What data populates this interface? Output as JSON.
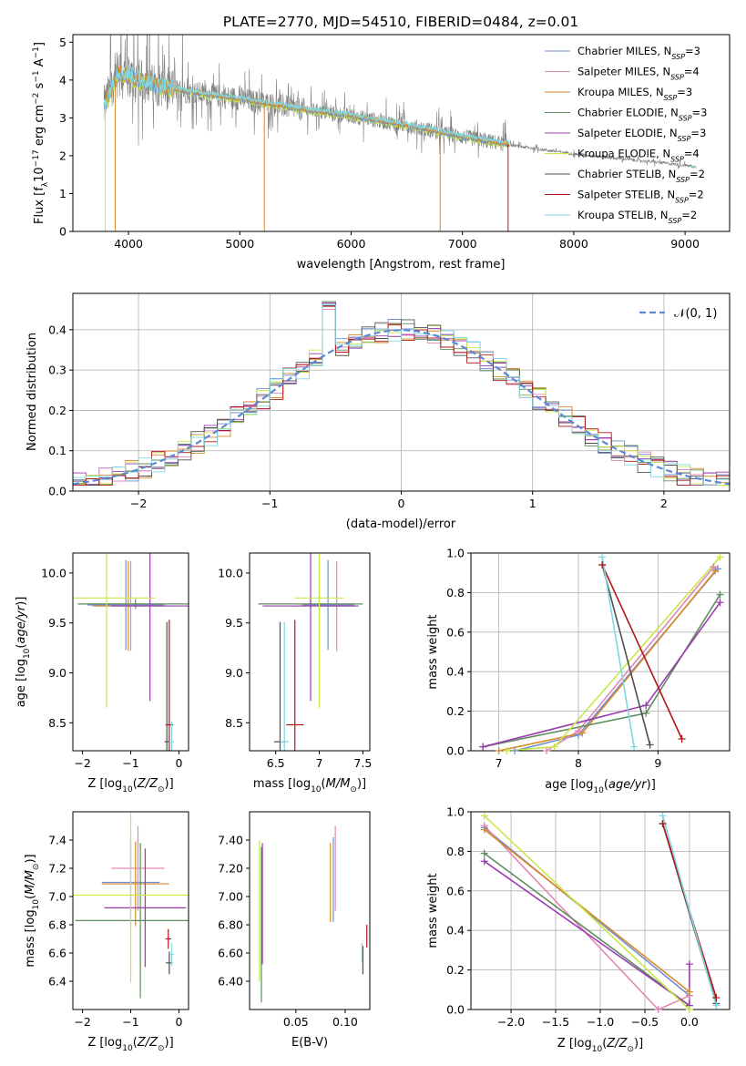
{
  "figure": {
    "title": "PLATE=2770, MJD=54510, FIBERID=0484, z=0.01"
  },
  "series_colors": {
    "Chabrier MILES": "#6f8fd0",
    "Salpeter MILES": "#e387b8",
    "Kroupa MILES": "#d98a2a",
    "Chabrier ELODIE": "#5e8e5e",
    "Salpeter ELODIE": "#9c3cb0",
    "Kroupa ELODIE": "#c8e84a",
    "Chabrier STELIB": "#505050",
    "Salpeter STELIB": "#b01616",
    "Kroupa STELIB": "#80d8e0",
    "data": "#808080",
    "gaussian": "#5a88d4"
  },
  "legend": [
    {
      "model": "Chabrier MILES",
      "n": "3",
      "text": "Chabrier MILES, N",
      "sub": "SSP",
      "suffix": "=3"
    },
    {
      "model": "Salpeter MILES",
      "n": "4",
      "text": "Salpeter MILES, N",
      "sub": "SSP",
      "suffix": "=4"
    },
    {
      "model": "Kroupa MILES",
      "n": "3",
      "text": "Kroupa MILES, N",
      "sub": "SSP",
      "suffix": "=3"
    },
    {
      "model": "Chabrier ELODIE",
      "n": "3",
      "text": "Chabrier ELODIE, N",
      "sub": "SSP",
      "suffix": "=3"
    },
    {
      "model": "Salpeter ELODIE",
      "n": "3",
      "text": "Salpeter ELODIE, N",
      "sub": "SSP",
      "suffix": "=3"
    },
    {
      "model": "Kroupa ELODIE",
      "n": "4",
      "text": "Kroupa ELODIE, N",
      "sub": "SSP",
      "suffix": "=4"
    },
    {
      "model": "Chabrier STELIB",
      "n": "2",
      "text": "Chabrier STELIB, N",
      "sub": "SSP",
      "suffix": "=2"
    },
    {
      "model": "Salpeter STELIB",
      "n": "2",
      "text": "Salpeter STELIB, N",
      "sub": "SSP",
      "suffix": "=2"
    },
    {
      "model": "Kroupa STELIB",
      "n": "2",
      "text": "Kroupa STELIB, N",
      "sub": "SSP",
      "suffix": "=2"
    }
  ],
  "chart_data": [
    {
      "id": "spectrum",
      "type": "line",
      "xlabel": "wavelength [Angstrom, rest frame]",
      "ylabel": "Flux [fλ10⁻¹⁷ erg cm⁻² s⁻¹ A⁻¹]",
      "xlim": [
        3500,
        9400
      ],
      "ylim": [
        0,
        5.2
      ],
      "xticks": [
        4000,
        5000,
        6000,
        7000,
        8000,
        9000
      ],
      "yticks": [
        0,
        1,
        2,
        3,
        4,
        5
      ],
      "data_range": [
        3780,
        9100
      ],
      "model_range": [
        3780,
        7420
      ],
      "continuum": [
        [
          3780,
          3.3
        ],
        [
          3900,
          4.2
        ],
        [
          4000,
          4.1
        ],
        [
          4200,
          3.9
        ],
        [
          4500,
          3.7
        ],
        [
          5000,
          3.5
        ],
        [
          5500,
          3.25
        ],
        [
          6000,
          3.05
        ],
        [
          6500,
          2.8
        ],
        [
          7000,
          2.5
        ],
        [
          7400,
          2.3
        ],
        [
          7500,
          2.25
        ],
        [
          8000,
          2.05
        ],
        [
          8500,
          1.9
        ],
        [
          9000,
          1.75
        ],
        [
          9100,
          1.7
        ]
      ]
    },
    {
      "id": "residuals",
      "type": "line",
      "xlabel": "(data-model)/error",
      "ylabel": "Normed distribution",
      "xlim": [
        -2.5,
        2.5
      ],
      "ylim": [
        0,
        0.49
      ],
      "xticks": [
        -2,
        -1,
        0,
        1,
        2
      ],
      "yticks": [
        0.0,
        0.1,
        0.2,
        0.3,
        0.4
      ],
      "legend_label": "𝒩(0, 1)",
      "bin_width": 0.1
    },
    {
      "id": "age-vs-Z",
      "type": "scatter",
      "xlabel": "Z [log₁₀(Z/Z⊙)]",
      "ylabel": "age  [log₁₀(age/yr)]",
      "xlim": [
        -2.2,
        0.2
      ],
      "ylim": [
        8.22,
        10.2
      ],
      "xticks": [
        -2,
        -1,
        0
      ],
      "yticks": [
        8.5,
        9.0,
        9.5,
        10.0
      ],
      "points": [
        {
          "series": "Chabrier MILES",
          "x": -1.1,
          "xerr": 0.8,
          "y": 9.68,
          "yerr": 0.45
        },
        {
          "series": "Salpeter MILES",
          "x": -1.0,
          "xerr": 0.8,
          "y": 9.67,
          "yerr": 0.45
        },
        {
          "series": "Kroupa MILES",
          "x": -1.05,
          "xerr": 0.7,
          "y": 9.67,
          "yerr": 0.45
        },
        {
          "series": "Chabrier ELODIE",
          "x": -0.9,
          "xerr": 1.2,
          "y": 9.69,
          "yerr": 0.05
        },
        {
          "series": "Salpeter ELODIE",
          "x": -0.6,
          "xerr": 0.8,
          "y": 9.67,
          "yerr": 0.95
        },
        {
          "series": "Kroupa ELODIE",
          "x": -1.5,
          "xerr": 1.0,
          "y": 9.75,
          "yerr": 1.1
        },
        {
          "series": "Chabrier STELIB",
          "x": -0.25,
          "xerr": 0.05,
          "y": 8.31,
          "yerr": 1.2
        },
        {
          "series": "Salpeter STELIB",
          "x": -0.2,
          "xerr": 0.08,
          "y": 8.48,
          "yerr": 1.05
        },
        {
          "series": "Kroupa STELIB",
          "x": -0.15,
          "xerr": 0.05,
          "y": 8.31,
          "yerr": 0.2
        }
      ]
    },
    {
      "id": "age-vs-mass",
      "type": "scatter",
      "xlabel": "mass [log₁₀(M/M⊙)]",
      "ylabel": "",
      "xlim": [
        6.2,
        7.58
      ],
      "ylim": [
        8.22,
        10.2
      ],
      "xticks": [
        6.5,
        7.0,
        7.5
      ],
      "yticks": [
        8.5,
        9.0,
        9.5,
        10.0
      ],
      "points": [
        {
          "series": "Chabrier MILES",
          "x": 7.1,
          "xerr": 0.3,
          "y": 9.68,
          "yerr": 0.45
        },
        {
          "series": "Salpeter MILES",
          "x": 7.2,
          "xerr": 0.25,
          "y": 9.67,
          "yerr": 0.45
        },
        {
          "series": "Kroupa MILES",
          "x": 7.0,
          "xerr": 0.3,
          "y": 9.67,
          "yerr": 0.45
        },
        {
          "series": "Chabrier ELODIE",
          "x": 6.9,
          "xerr": 0.6,
          "y": 9.69,
          "yerr": 0.05
        },
        {
          "series": "Salpeter ELODIE",
          "x": 6.9,
          "xerr": 0.55,
          "y": 9.67,
          "yerr": 0.95
        },
        {
          "series": "Kroupa ELODIE",
          "x": 7.0,
          "xerr": 0.28,
          "y": 9.75,
          "yerr": 1.1
        },
        {
          "series": "Chabrier STELIB",
          "x": 6.55,
          "xerr": 0.07,
          "y": 8.31,
          "yerr": 1.2
        },
        {
          "series": "Salpeter STELIB",
          "x": 6.72,
          "xerr": 0.1,
          "y": 8.48,
          "yerr": 1.05
        },
        {
          "series": "Kroupa STELIB",
          "x": 6.6,
          "xerr": 0.05,
          "y": 8.31,
          "yerr": 1.2
        }
      ]
    },
    {
      "id": "weight-vs-age",
      "type": "line",
      "xlabel": "age  [log₁₀(age/yr)]",
      "ylabel": "mass weight",
      "xlim": [
        6.65,
        9.9
      ],
      "ylim": [
        0,
        1
      ],
      "xticks": [
        7,
        8,
        9
      ],
      "yticks": [
        0.0,
        0.2,
        0.4,
        0.6,
        0.8,
        1.0
      ],
      "series": [
        {
          "name": "Chabrier MILES",
          "x": [
            7.2,
            8.0,
            9.75
          ],
          "y": [
            0.0,
            0.08,
            0.92
          ]
        },
        {
          "name": "Salpeter MILES",
          "x": [
            7.6,
            8.0,
            9.7
          ],
          "y": [
            0.0,
            0.1,
            0.93
          ]
        },
        {
          "name": "Kroupa MILES",
          "x": [
            7.0,
            8.05,
            9.72
          ],
          "y": [
            0.0,
            0.09,
            0.91
          ]
        },
        {
          "name": "Chabrier ELODIE",
          "x": [
            6.8,
            8.85,
            9.78
          ],
          "y": [
            0.02,
            0.19,
            0.79
          ]
        },
        {
          "name": "Salpeter ELODIE",
          "x": [
            6.8,
            8.85,
            9.78
          ],
          "y": [
            0.02,
            0.23,
            0.75
          ]
        },
        {
          "name": "Kroupa ELODIE",
          "x": [
            7.1,
            7.7,
            9.78
          ],
          "y": [
            0.0,
            0.02,
            0.98
          ]
        },
        {
          "name": "Chabrier STELIB",
          "x": [
            8.3,
            8.9
          ],
          "y": [
            0.94,
            0.03
          ]
        },
        {
          "name": "Salpeter STELIB",
          "x": [
            8.3,
            9.3
          ],
          "y": [
            0.94,
            0.06
          ]
        },
        {
          "name": "Kroupa STELIB",
          "x": [
            8.3,
            8.7
          ],
          "y": [
            0.98,
            0.02
          ]
        }
      ]
    },
    {
      "id": "mass-vs-Z",
      "type": "scatter",
      "xlabel": "Z [log₁₀(Z/Z⊙)]",
      "ylabel": "mass [log₁₀(M/M⊙)]",
      "xlim": [
        -2.2,
        0.2
      ],
      "ylim": [
        6.2,
        7.6
      ],
      "xticks": [
        -2,
        -1,
        0
      ],
      "yticks": [
        6.4,
        6.6,
        6.8,
        7.0,
        7.2,
        7.4
      ],
      "points": [
        {
          "series": "Chabrier MILES",
          "x": -1.0,
          "xerr": 0.6,
          "y": 7.1,
          "yerr": 0.3
        },
        {
          "series": "Salpeter MILES",
          "x": -0.85,
          "xerr": 0.55,
          "y": 7.2,
          "yerr": 0.3
        },
        {
          "series": "Kroupa MILES",
          "x": -0.9,
          "xerr": 0.7,
          "y": 7.09,
          "yerr": 0.3
        },
        {
          "series": "Chabrier ELODIE",
          "x": -0.8,
          "xerr": 1.35,
          "y": 6.83,
          "yerr": 0.55
        },
        {
          "series": "Salpeter ELODIE",
          "x": -0.7,
          "xerr": 0.85,
          "y": 6.92,
          "yerr": 0.42
        },
        {
          "series": "Kroupa ELODIE",
          "x": -1.0,
          "xerr": 1.2,
          "y": 7.01,
          "yerr": 0.62
        },
        {
          "series": "Chabrier STELIB",
          "x": -0.2,
          "xerr": 0.07,
          "y": 6.53,
          "yerr": 0.08
        },
        {
          "series": "Salpeter STELIB",
          "x": -0.22,
          "xerr": 0.06,
          "y": 6.7,
          "yerr": 0.07
        },
        {
          "series": "Kroupa STELIB",
          "x": -0.15,
          "xerr": 0.05,
          "y": 6.59,
          "yerr": 0.08
        }
      ]
    },
    {
      "id": "mass-vs-ebv",
      "type": "scatter",
      "xlabel": "E(B-V)",
      "ylabel": "",
      "xlim": [
        0.003,
        0.125
      ],
      "ylim": [
        6.2,
        7.6
      ],
      "xticks": [
        0.05,
        0.1
      ],
      "yticks": [
        6.4,
        6.6,
        6.8,
        7.0,
        7.2,
        7.4
      ],
      "points": [
        {
          "series": "Chabrier MILES",
          "x": 0.088,
          "y": 7.12,
          "yerr": 0.3
        },
        {
          "series": "Salpeter MILES",
          "x": 0.09,
          "y": 7.2,
          "yerr": 0.3
        },
        {
          "series": "Kroupa MILES",
          "x": 0.085,
          "y": 7.1,
          "yerr": 0.28
        },
        {
          "series": "Chabrier ELODIE",
          "x": 0.015,
          "y": 6.8,
          "yerr": 0.55
        },
        {
          "series": "Salpeter ELODIE",
          "x": 0.016,
          "y": 6.95,
          "yerr": 0.43
        },
        {
          "series": "Kroupa ELODIE",
          "x": 0.013,
          "y": 6.9,
          "yerr": 0.5
        },
        {
          "series": "Chabrier STELIB",
          "x": 0.118,
          "y": 6.55,
          "yerr": 0.1
        },
        {
          "series": "Salpeter STELIB",
          "x": 0.122,
          "y": 6.72,
          "yerr": 0.08
        },
        {
          "series": "Kroupa STELIB",
          "x": 0.117,
          "y": 6.6,
          "yerr": 0.07
        }
      ]
    },
    {
      "id": "weight-vs-Z",
      "type": "line",
      "xlabel": "Z [log₁₀(Z/Z⊙)]",
      "ylabel": "mass weight",
      "xlim": [
        -2.45,
        0.45
      ],
      "ylim": [
        0,
        1
      ],
      "xticks": [
        -2.0,
        -1.5,
        -1.0,
        -0.5,
        0.0
      ],
      "yticks": [
        0.0,
        0.2,
        0.4,
        0.6,
        0.8,
        1.0
      ],
      "series": [
        {
          "name": "Chabrier MILES",
          "x": [
            -2.3,
            0.0
          ],
          "y": [
            0.92,
            0.07
          ]
        },
        {
          "name": "Salpeter MILES",
          "x": [
            -2.3,
            -0.35,
            0.0
          ],
          "y": [
            0.93,
            0.0,
            0.07
          ]
        },
        {
          "name": "Kroupa MILES",
          "x": [
            -2.3,
            0.0
          ],
          "y": [
            0.91,
            0.09
          ]
        },
        {
          "name": "Chabrier ELODIE",
          "x": [
            -2.3,
            0.0
          ],
          "y": [
            0.79,
            0.02
          ]
        },
        {
          "name": "Salpeter ELODIE",
          "x": [
            -2.3,
            0.0,
            0.0
          ],
          "y": [
            0.75,
            0.02,
            0.23
          ]
        },
        {
          "name": "Kroupa ELODIE",
          "x": [
            -2.3,
            0.0
          ],
          "y": [
            0.98,
            0.0
          ]
        },
        {
          "name": "Chabrier STELIB",
          "x": [
            -0.3,
            0.3
          ],
          "y": [
            0.94,
            0.03
          ]
        },
        {
          "name": "Salpeter STELIB",
          "x": [
            -0.3,
            0.3
          ],
          "y": [
            0.94,
            0.06
          ]
        },
        {
          "name": "Kroupa STELIB",
          "x": [
            -0.3,
            0.3
          ],
          "y": [
            0.98,
            0.02
          ]
        }
      ]
    }
  ]
}
